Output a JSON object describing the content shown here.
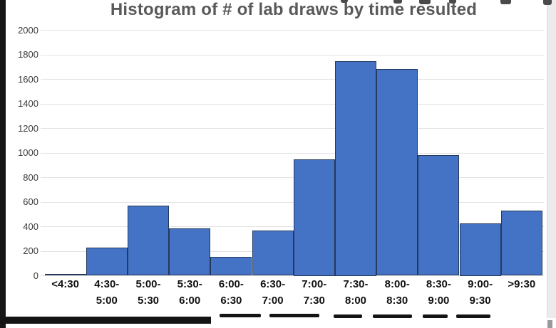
{
  "chart_data": {
    "type": "bar",
    "title": "Histogram of # of lab draws by time resulted",
    "categories": [
      [
        "<4:30"
      ],
      [
        "4:30-",
        "5:00"
      ],
      [
        "5:00-",
        "5:30"
      ],
      [
        "5:30-",
        "6:00"
      ],
      [
        "6:00-",
        "6:30"
      ],
      [
        "6:30-",
        "7:00"
      ],
      [
        "7:00-",
        "7:30"
      ],
      [
        "7:30-",
        "8:00"
      ],
      [
        "8:00-",
        "8:30"
      ],
      [
        "8:30-",
        "9:00"
      ],
      [
        "9:00-",
        "9:30"
      ],
      [
        ">9:30"
      ]
    ],
    "values": [
      12,
      230,
      570,
      385,
      155,
      370,
      950,
      1750,
      1685,
      985,
      425,
      530
    ],
    "xlabel": "",
    "ylabel": "",
    "ylim": [
      0,
      2000
    ],
    "ytick_step": 200,
    "ytick_labels": [
      "0",
      "200",
      "400",
      "600",
      "800",
      "1000",
      "1200",
      "1400",
      "1600",
      "1800",
      "2000"
    ],
    "grid": true,
    "legend": "none",
    "bar_fill": "#4472C4",
    "bar_border": "#24395B",
    "title_color": "#595959",
    "ytick_color": "#3b3b3b",
    "xtick_color": "#101010",
    "gridline_color": "#e3e3e3"
  }
}
